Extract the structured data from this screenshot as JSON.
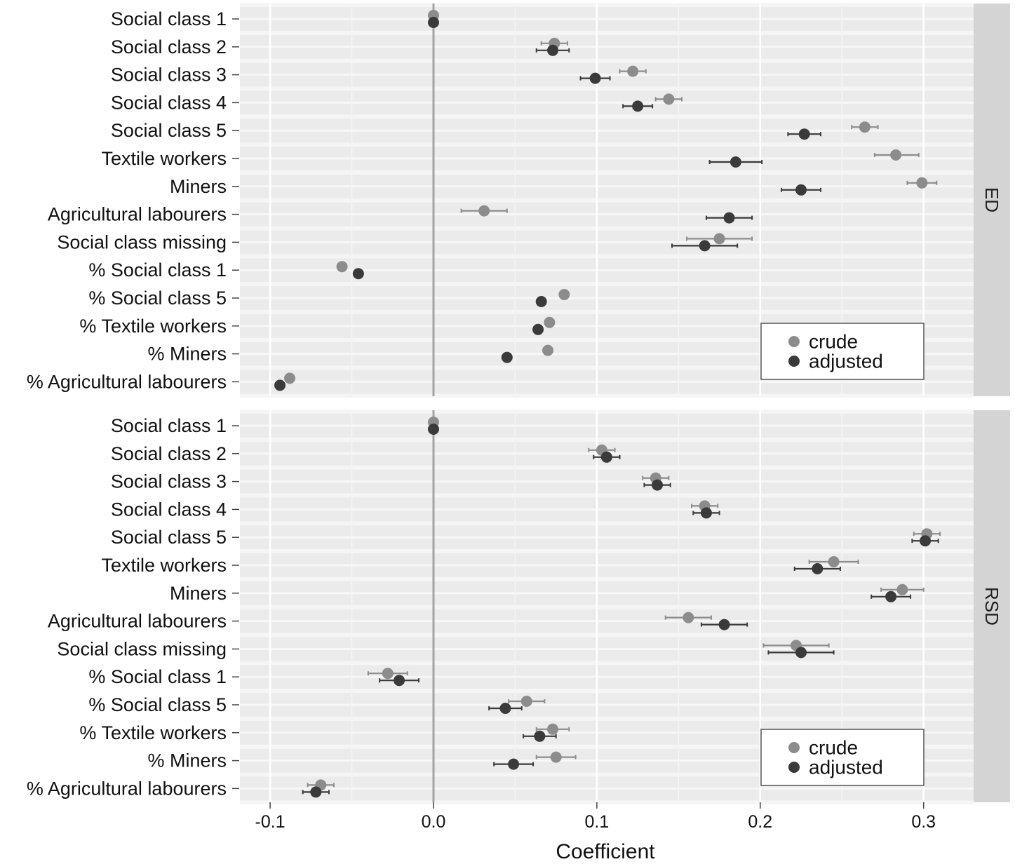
{
  "chart_data": {
    "type": "scatter",
    "subtype": "faceted coefficient plot with confidence intervals",
    "xlabel": "Coefficient",
    "xlim": [
      -0.103,
      0.33
    ],
    "x_ticks": [
      -0.1,
      0.0,
      0.1,
      0.2,
      0.3
    ],
    "x_tick_labels": [
      "-0.1",
      "0.0",
      "0.1",
      "0.2",
      "0.3"
    ],
    "reference_line_x": 0,
    "grid": true,
    "categories": [
      "Social class 1",
      "Social class 2",
      "Social class 3",
      "Social class 4",
      "Social class 5",
      "Textile workers",
      "Miners",
      "Agricultural labourers",
      "Social class missing",
      "% Social class 1",
      "% Social class 5",
      "% Textile workers",
      "% Miners",
      "% Agricultural labourers"
    ],
    "legend": {
      "position": "bottom-right",
      "entries": [
        {
          "name": "crude",
          "color": "#8c8c8c"
        },
        {
          "name": "adjusted",
          "color": "#3a3a3a"
        }
      ]
    },
    "facets": [
      {
        "label": "ED",
        "series": [
          {
            "name": "crude",
            "color": "#8c8c8c",
            "values": [
              0.0,
              0.074,
              0.122,
              0.144,
              0.264,
              0.283,
              0.299,
              0.031,
              0.175,
              -0.056,
              0.08,
              0.071,
              0.07,
              -0.088
            ],
            "ci_low": [
              0.0,
              0.066,
              0.114,
              0.136,
              0.256,
              0.27,
              0.29,
              0.017,
              0.155,
              -0.058,
              0.078,
              0.069,
              0.068,
              -0.09
            ],
            "ci_high": [
              0.0,
              0.082,
              0.13,
              0.152,
              0.272,
              0.297,
              0.308,
              0.045,
              0.195,
              -0.054,
              0.082,
              0.073,
              0.072,
              -0.086
            ]
          },
          {
            "name": "adjusted",
            "color": "#3a3a3a",
            "values": [
              0.0,
              0.073,
              0.099,
              0.125,
              0.227,
              0.185,
              0.225,
              0.181,
              0.166,
              -0.046,
              0.066,
              0.064,
              0.045,
              -0.094
            ],
            "ci_low": [
              0.0,
              0.063,
              0.09,
              0.116,
              0.217,
              0.169,
              0.213,
              0.167,
              0.146,
              -0.048,
              0.064,
              0.062,
              0.043,
              -0.096
            ],
            "ci_high": [
              0.0,
              0.083,
              0.108,
              0.134,
              0.237,
              0.201,
              0.237,
              0.195,
              0.186,
              -0.044,
              0.068,
              0.066,
              0.047,
              -0.092
            ]
          }
        ]
      },
      {
        "label": "RSD",
        "series": [
          {
            "name": "crude",
            "color": "#8c8c8c",
            "values": [
              0.0,
              0.103,
              0.136,
              0.166,
              0.302,
              0.245,
              0.287,
              0.156,
              0.222,
              -0.028,
              0.057,
              0.073,
              0.075,
              -0.069
            ],
            "ci_low": [
              0.0,
              0.095,
              0.128,
              0.158,
              0.294,
              0.23,
              0.274,
              0.142,
              0.202,
              -0.04,
              0.046,
              0.063,
              0.063,
              -0.077
            ],
            "ci_high": [
              0.0,
              0.111,
              0.144,
              0.174,
              0.31,
              0.26,
              0.3,
              0.17,
              0.242,
              -0.016,
              0.068,
              0.083,
              0.087,
              -0.061
            ]
          },
          {
            "name": "adjusted",
            "color": "#3a3a3a",
            "values": [
              0.0,
              0.106,
              0.137,
              0.167,
              0.301,
              0.235,
              0.28,
              0.178,
              0.225,
              -0.021,
              0.044,
              0.065,
              0.049,
              -0.072
            ],
            "ci_low": [
              0.0,
              0.098,
              0.129,
              0.159,
              0.293,
              0.221,
              0.268,
              0.164,
              0.205,
              -0.033,
              0.034,
              0.055,
              0.037,
              -0.08
            ],
            "ci_high": [
              0.0,
              0.114,
              0.145,
              0.175,
              0.309,
              0.249,
              0.292,
              0.192,
              0.245,
              -0.009,
              0.054,
              0.075,
              0.061,
              -0.064
            ]
          }
        ]
      }
    ]
  }
}
